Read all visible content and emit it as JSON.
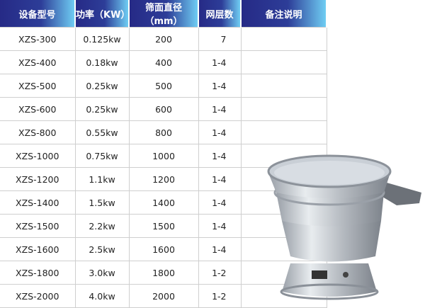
{
  "table": {
    "headers": [
      "设备型号",
      "功率（KW）",
      "筛面直径（mm）",
      "网层数",
      "备注说明"
    ],
    "rows": [
      [
        "XZS-300",
        "0.125kw",
        "200",
        "7",
        ""
      ],
      [
        "XZS-400",
        "0.18kw",
        "400",
        "1-4",
        ""
      ],
      [
        "XZS-500",
        "0.25kw",
        "500",
        "1-4",
        ""
      ],
      [
        "XZS-600",
        "0.25kw",
        "600",
        "1-4",
        ""
      ],
      [
        "XZS-800",
        "0.55kw",
        "800",
        "1-4",
        ""
      ],
      [
        "XZS-1000",
        "0.75kw",
        "1000",
        "1-4",
        ""
      ],
      [
        "XZS-1200",
        "1.1kw",
        "1200",
        "1-4",
        ""
      ],
      [
        "XZS-1400",
        "1.5kw",
        "1400",
        "1-4",
        ""
      ],
      [
        "XZS-1500",
        "2.2kw",
        "1500",
        "1-4",
        ""
      ],
      [
        "XZS-1600",
        "2.5kw",
        "1600",
        "1-4",
        ""
      ],
      [
        "XZS-1800",
        "3.0kw",
        "1800",
        "1-2",
        ""
      ],
      [
        "XZS-2000",
        "4.0kw",
        "2000",
        "1-2",
        ""
      ]
    ]
  },
  "colors": {
    "header_dark": "#262a86",
    "header_light": "#6fcdf3"
  }
}
